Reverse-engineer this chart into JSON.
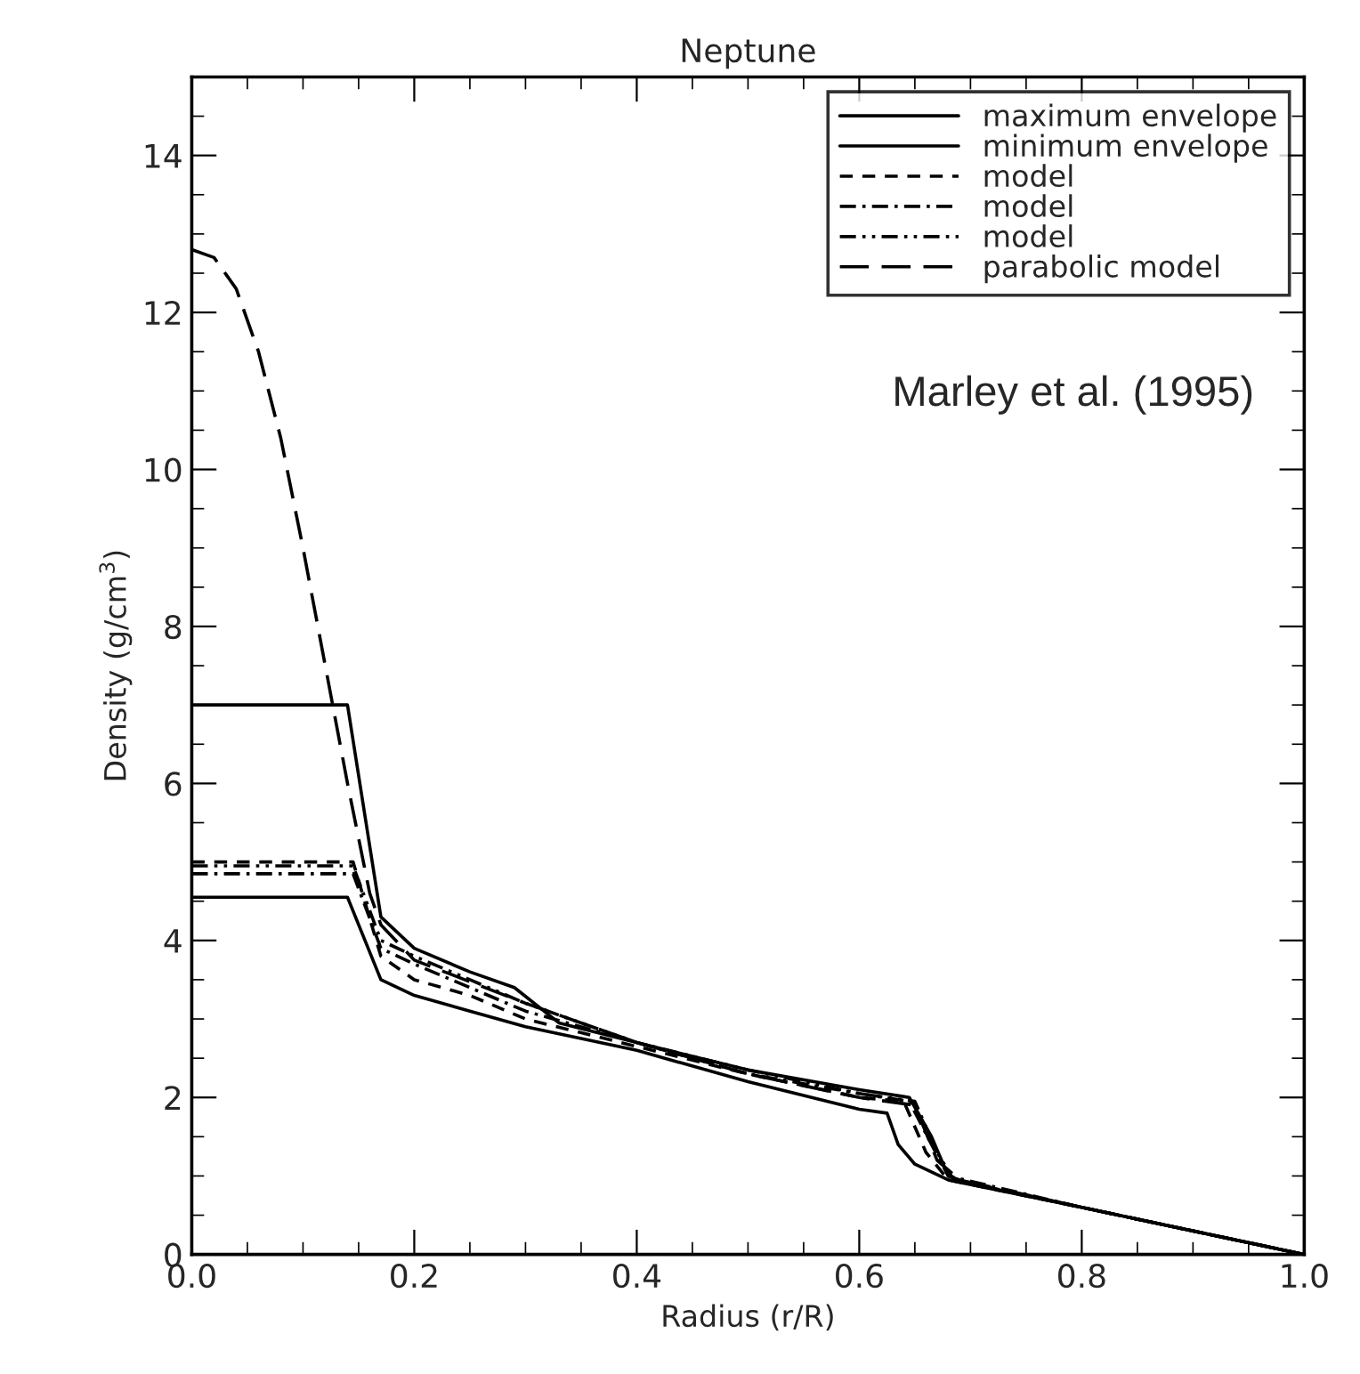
{
  "chart_data": {
    "type": "line",
    "title": "Neptune",
    "xlabel": "Radius (r/R)",
    "ylabel": "Density (g/cm$^{3}$)",
    "xlim": [
      0.0,
      1.0
    ],
    "xticks": [
      {
        "value": 0.0,
        "label": "0.0"
      },
      0.2,
      0.4,
      0.6,
      0.8,
      {
        "value": 1.0,
        "label": "1.0"
      }
    ],
    "ylim": [
      0,
      15
    ],
    "yticks": [
      0,
      2,
      4,
      6,
      8,
      10,
      12,
      14
    ],
    "legend": "top right",
    "grid": false,
    "annotations": [
      "Marley et al. (1995)"
    ],
    "series": [
      {
        "name": "maximum envelope",
        "color": "#000000",
        "line_style": "solid",
        "x": [
          0.0,
          0.14,
          0.17,
          0.2,
          0.25,
          0.29,
          0.33,
          0.4,
          0.5,
          0.6,
          0.645,
          0.665,
          0.68,
          0.7,
          0.8,
          0.9,
          1.0
        ],
        "values": [
          7.0,
          7.0,
          4.3,
          3.9,
          3.6,
          3.4,
          2.95,
          2.7,
          2.35,
          2.1,
          2.0,
          1.5,
          1.0,
          0.9,
          0.6,
          0.3,
          0.0
        ]
      },
      {
        "name": "minimum envelope",
        "color": "#000000",
        "line_style": "solid",
        "x": [
          0.0,
          0.14,
          0.17,
          0.2,
          0.25,
          0.3,
          0.4,
          0.5,
          0.6,
          0.625,
          0.635,
          0.65,
          0.68,
          0.8,
          0.9,
          1.0
        ],
        "values": [
          4.55,
          4.55,
          3.5,
          3.3,
          3.1,
          2.9,
          2.6,
          2.2,
          1.85,
          1.8,
          1.4,
          1.15,
          0.95,
          0.6,
          0.3,
          0.0
        ]
      },
      {
        "name": "model",
        "color": "#000000",
        "line_style": "dashed",
        "x": [
          0.0,
          0.145,
          0.17,
          0.2,
          0.25,
          0.3,
          0.4,
          0.5,
          0.6,
          0.64,
          0.66,
          0.68,
          0.8,
          1.0
        ],
        "values": [
          5.0,
          5.0,
          3.8,
          3.5,
          3.3,
          3.0,
          2.65,
          2.3,
          2.0,
          1.95,
          1.3,
          0.95,
          0.6,
          0.0
        ]
      },
      {
        "name": "model",
        "color": "#000000",
        "line_style": "dashdot",
        "x": [
          0.0,
          0.145,
          0.17,
          0.2,
          0.25,
          0.3,
          0.4,
          0.5,
          0.6,
          0.645,
          0.665,
          0.68,
          0.8,
          1.0
        ],
        "values": [
          4.85,
          4.85,
          3.9,
          3.7,
          3.4,
          3.1,
          2.7,
          2.3,
          2.05,
          1.95,
          1.4,
          1.0,
          0.6,
          0.0
        ]
      },
      {
        "name": "model",
        "color": "#000000",
        "line_style": "dashdotdot",
        "x": [
          0.0,
          0.145,
          0.17,
          0.2,
          0.25,
          0.3,
          0.4,
          0.5,
          0.6,
          0.65,
          0.67,
          0.685,
          0.8,
          1.0
        ],
        "values": [
          4.95,
          4.95,
          4.0,
          3.8,
          3.5,
          3.2,
          2.7,
          2.35,
          2.05,
          1.95,
          1.3,
          0.95,
          0.6,
          0.0
        ]
      },
      {
        "name": "parabolic model",
        "color": "#000000",
        "line_style": "longdash",
        "x": [
          0.0,
          0.02,
          0.04,
          0.06,
          0.08,
          0.1,
          0.12,
          0.14,
          0.16,
          0.17,
          0.2,
          0.3,
          0.4,
          0.5,
          0.6,
          0.65,
          0.67,
          0.69,
          0.8,
          1.0
        ],
        "values": [
          12.8,
          12.7,
          12.3,
          11.5,
          10.4,
          9.0,
          7.5,
          6.0,
          4.6,
          4.2,
          3.75,
          3.2,
          2.7,
          2.3,
          2.0,
          1.9,
          1.2,
          0.95,
          0.6,
          0.0
        ]
      }
    ]
  }
}
